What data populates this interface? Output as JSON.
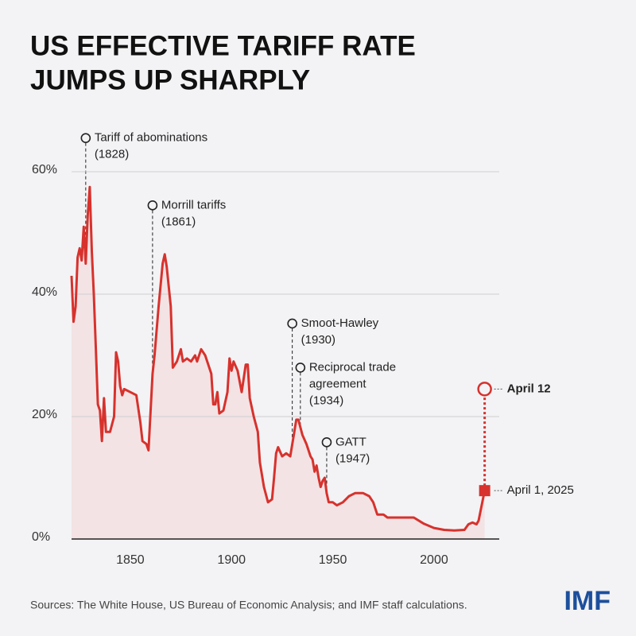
{
  "chart_data": {
    "type": "line",
    "title_lines": [
      "US EFFECTIVE TARIFF RATE",
      "JUMPS UP SHARPLY"
    ],
    "series": [
      {
        "color": "#d7322d",
        "area_color": "#f3e3e5",
        "x": [
          1821,
          1822,
          1823,
          1824,
          1825,
          1826,
          1827,
          1828,
          1829,
          1830,
          1831,
          1832,
          1833,
          1834,
          1835,
          1836,
          1837,
          1838,
          1840,
          1842,
          1843,
          1844,
          1845,
          1846,
          1847,
          1850,
          1853,
          1855,
          1856,
          1858,
          1859,
          1861,
          1862,
          1864,
          1866,
          1867,
          1868,
          1870,
          1871,
          1873,
          1875,
          1876,
          1878,
          1880,
          1882,
          1883,
          1885,
          1887,
          1890,
          1891,
          1892,
          1893,
          1894,
          1896,
          1898,
          1899,
          1900,
          1901,
          1903,
          1905,
          1907,
          1908,
          1909,
          1911,
          1913,
          1914,
          1916,
          1918,
          1920,
          1921,
          1922,
          1923,
          1925,
          1927,
          1929,
          1931,
          1932,
          1933,
          1935,
          1937,
          1939,
          1940,
          1941,
          1942,
          1943,
          1944,
          1945,
          1946,
          1947,
          1948,
          1950,
          1952,
          1955,
          1958,
          1961,
          1965,
          1968,
          1970,
          1972,
          1975,
          1977,
          1980,
          1985,
          1990,
          1995,
          2000,
          2005,
          2010,
          2015,
          2017,
          2019,
          2021,
          2022,
          2025
        ],
        "values": [
          43,
          35.5,
          38,
          46,
          47.5,
          45.5,
          51,
          45,
          53,
          57.5,
          47,
          40,
          31,
          22,
          21,
          16,
          23,
          17.5,
          17.5,
          20,
          30.5,
          29,
          25,
          23.5,
          24.5,
          24,
          23.5,
          19,
          16,
          15.5,
          14.5,
          27,
          30,
          38,
          45,
          46.5,
          44.5,
          38,
          28,
          29,
          31,
          29,
          29.5,
          29,
          30,
          29,
          31,
          30,
          27,
          22,
          22,
          24,
          20.5,
          21,
          24,
          29.5,
          27.5,
          29,
          27.5,
          24,
          28.5,
          28.5,
          23,
          20,
          17.5,
          12.5,
          8.5,
          6,
          6.5,
          10,
          14,
          15,
          13.5,
          14,
          13.5,
          17.5,
          19.5,
          19.5,
          17,
          15.5,
          13.5,
          13,
          11,
          12,
          10,
          8.5,
          9.5,
          10,
          7.5,
          6,
          6,
          5.5,
          6,
          7,
          7.5,
          7.5,
          7,
          6,
          4,
          4,
          3.5,
          3.5,
          3.5,
          3.5,
          2.5,
          1.8,
          1.5,
          1.4,
          1.5,
          2.4,
          2.7,
          2.4,
          3,
          7.9
        ]
      }
    ],
    "highlights": [
      {
        "label": "April 1, 2025",
        "x": 2025,
        "value": 7.9,
        "shape": "square"
      },
      {
        "label": "April 12",
        "x": 2025,
        "value": 24.5,
        "shape": "circle"
      }
    ],
    "annotations": [
      {
        "lines": [
          "Tariff of abominations",
          "(1828)"
        ],
        "x": 1828,
        "y": 65.5
      },
      {
        "lines": [
          "Morrill tariffs",
          "(1861)"
        ],
        "x": 1861,
        "y": 54.5
      },
      {
        "lines": [
          "Smoot-Hawley",
          "(1930)"
        ],
        "x": 1930,
        "y": 35.2
      },
      {
        "lines": [
          "Reciprocal trade",
          "agreement",
          "(1934)"
        ],
        "x": 1934,
        "y": 28
      },
      {
        "lines": [
          "GATT",
          "(1947)"
        ],
        "x": 1947,
        "y": 15.8
      }
    ],
    "xlim": [
      1821,
      2033
    ],
    "ylim": [
      0,
      70
    ],
    "xticks": [
      1850,
      1900,
      1950,
      2000
    ],
    "yticks": [
      {
        "value": 0,
        "label": "0%"
      },
      {
        "value": 20,
        "label": "20%"
      },
      {
        "value": 40,
        "label": "40%"
      },
      {
        "value": 60,
        "label": "60%"
      }
    ],
    "grid": true,
    "source": "Sources: The White House, US Bureau of Economic Analysis; and IMF staff calculations.",
    "logo": "IMF"
  }
}
